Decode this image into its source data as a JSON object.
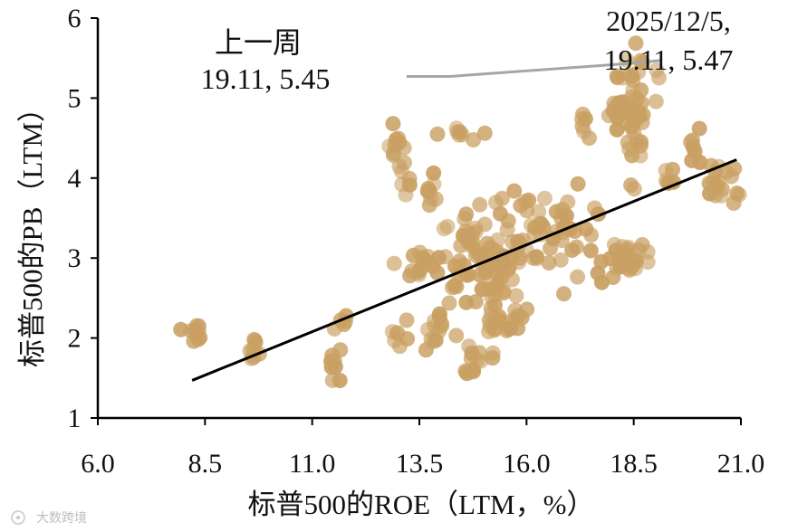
{
  "chart_data": {
    "type": "scatter",
    "xlabel": "标普500的ROE（LTM，%）",
    "ylabel": "标普500的PB（LTM）",
    "xlim": [
      6.0,
      21.0
    ],
    "ylim": [
      1,
      6
    ],
    "x_ticks": [
      "6.0",
      "8.5",
      "11.0",
      "13.5",
      "16.0",
      "18.5",
      "21.0"
    ],
    "y_ticks": [
      "1",
      "2",
      "3",
      "4",
      "5",
      "6"
    ],
    "x_tick_values": [
      6.0,
      8.5,
      11.0,
      13.5,
      16.0,
      18.5,
      21.0
    ],
    "y_tick_values": [
      1,
      2,
      3,
      4,
      5,
      6
    ],
    "grid": false,
    "colors": {
      "points": "#c9a063",
      "trend": "#000000",
      "recent_line": "#a6a6a6",
      "axis": "#000000"
    },
    "annotations": {
      "last_week_label": "上一周",
      "last_week_value": "19.11, 5.45",
      "latest_date": "2025/12/5,",
      "latest_value": "19.11, 5.47"
    },
    "trend_line": {
      "x": [
        8.2,
        20.9
      ],
      "y": [
        1.47,
        4.23
      ]
    },
    "recent_line": {
      "x": [
        13.2,
        14.2,
        18.6,
        19.11
      ],
      "y": [
        5.27,
        5.27,
        5.44,
        5.47
      ]
    },
    "series": [
      {
        "clusters": [
          {
            "x": 8.2,
            "y": 2.1,
            "n": 10,
            "sx": 0.15,
            "sy": 0.07
          },
          {
            "x": 9.6,
            "y": 1.9,
            "n": 8,
            "sx": 0.08,
            "sy": 0.1
          },
          {
            "x": 11.5,
            "y": 1.7,
            "n": 8,
            "sx": 0.1,
            "sy": 0.15
          },
          {
            "x": 11.7,
            "y": 2.2,
            "n": 5,
            "sx": 0.08,
            "sy": 0.08
          },
          {
            "x": 12.9,
            "y": 4.4,
            "n": 8,
            "sx": 0.08,
            "sy": 0.15
          },
          {
            "x": 13.2,
            "y": 4.1,
            "n": 8,
            "sx": 0.1,
            "sy": 0.15
          },
          {
            "x": 13.8,
            "y": 3.8,
            "n": 8,
            "sx": 0.07,
            "sy": 0.12
          },
          {
            "x": 13.0,
            "y": 2.0,
            "n": 6,
            "sx": 0.15,
            "sy": 0.06
          },
          {
            "x": 13.5,
            "y": 2.9,
            "n": 14,
            "sx": 0.3,
            "sy": 0.1
          },
          {
            "x": 14.0,
            "y": 2.1,
            "n": 14,
            "sx": 0.25,
            "sy": 0.12
          },
          {
            "x": 14.5,
            "y": 4.55,
            "n": 8,
            "sx": 0.25,
            "sy": 0.07
          },
          {
            "x": 14.8,
            "y": 3.0,
            "n": 45,
            "sx": 0.45,
            "sy": 0.35
          },
          {
            "x": 15.3,
            "y": 2.5,
            "n": 35,
            "sx": 0.35,
            "sy": 0.35
          },
          {
            "x": 14.8,
            "y": 1.7,
            "n": 10,
            "sx": 0.12,
            "sy": 0.1
          },
          {
            "x": 16.0,
            "y": 3.2,
            "n": 35,
            "sx": 0.45,
            "sy": 0.3
          },
          {
            "x": 15.8,
            "y": 2.2,
            "n": 10,
            "sx": 0.25,
            "sy": 0.08
          },
          {
            "x": 17.2,
            "y": 3.2,
            "n": 30,
            "sx": 0.45,
            "sy": 0.3
          },
          {
            "x": 17.3,
            "y": 4.65,
            "n": 6,
            "sx": 0.08,
            "sy": 0.12
          },
          {
            "x": 18.3,
            "y": 2.95,
            "n": 22,
            "sx": 0.25,
            "sy": 0.1
          },
          {
            "x": 18.1,
            "y": 4.8,
            "n": 12,
            "sx": 0.2,
            "sy": 0.15
          },
          {
            "x": 18.5,
            "y": 4.7,
            "n": 28,
            "sx": 0.15,
            "sy": 0.4
          },
          {
            "x": 18.6,
            "y": 5.2,
            "n": 16,
            "sx": 0.3,
            "sy": 0.2
          },
          {
            "x": 19.3,
            "y": 4.0,
            "n": 6,
            "sx": 0.1,
            "sy": 0.1
          },
          {
            "x": 20.0,
            "y": 4.4,
            "n": 6,
            "sx": 0.1,
            "sy": 0.1
          },
          {
            "x": 20.5,
            "y": 3.95,
            "n": 20,
            "sx": 0.25,
            "sy": 0.15
          }
        ]
      }
    ]
  },
  "watermark": "大数跨境"
}
